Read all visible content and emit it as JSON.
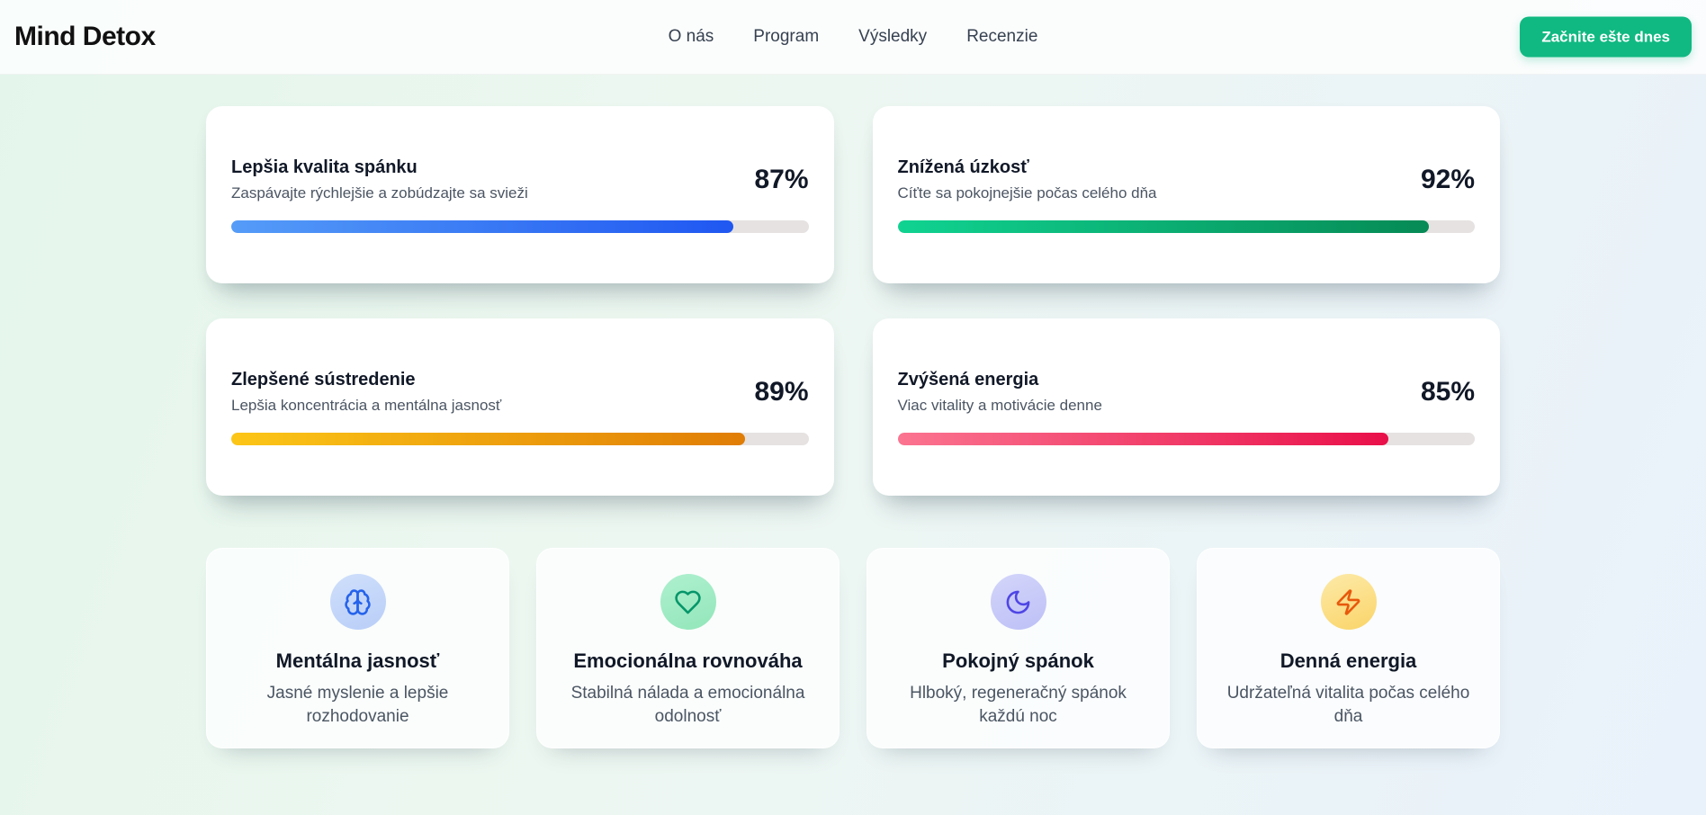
{
  "header": {
    "brand": "Mind Detox",
    "nav_items": [
      {
        "label": "O nás"
      },
      {
        "label": "Program"
      },
      {
        "label": "Výsledky"
      },
      {
        "label": "Recenzie"
      }
    ],
    "cta_label": "Začnite ešte dnes",
    "cta_color": "#10b981"
  },
  "stats": [
    {
      "title": "Lepšia kvalita spánku",
      "subtitle": "Zaspávajte rýchlejšie a zobúdzajte sa svieži",
      "percent": "87%",
      "value": 87,
      "bar_from": "#559cf8",
      "bar_to": "#1f57f1"
    },
    {
      "title": "Znížená úzkosť",
      "subtitle": "Cíťte sa pokojnejšie počas celého dňa",
      "percent": "92%",
      "value": 92,
      "bar_from": "#10d391",
      "bar_to": "#068a55"
    },
    {
      "title": "Zlepšené sústredenie",
      "subtitle": "Lepšia koncentrácia a mentálna jasnosť",
      "percent": "89%",
      "value": 89,
      "bar_from": "#fcc617",
      "bar_to": "#e07d05"
    },
    {
      "title": "Zvýšená energia",
      "subtitle": "Viac vitality a motivácie denne",
      "percent": "85%",
      "value": 85,
      "bar_from": "#fb7490",
      "bar_to": "#e91049"
    }
  ],
  "features": [
    {
      "icon": "brain-icon",
      "title": "Mentálna jasnosť",
      "subtitle": "Jasné myslenie a lepšie rozhodovanie",
      "icon_color": "#2563eb",
      "circle_from": "#cfdffb",
      "circle_to": "#b9cef8"
    },
    {
      "icon": "heart-icon",
      "title": "Emocionálna rovnováha",
      "subtitle": "Stabilná nálada a emocionálna odolnosť",
      "icon_color": "#059669",
      "circle_from": "#aef0cf",
      "circle_to": "#93e6ba"
    },
    {
      "icon": "moon-icon",
      "title": "Pokojný spánok",
      "subtitle": "Hlboký, regeneračný spánok každú noc",
      "icon_color": "#4f46e5",
      "circle_from": "#d3d5fa",
      "circle_to": "#bdc0f6"
    },
    {
      "icon": "zap-icon",
      "title": "Denná energia",
      "subtitle": "Udržateľná vitalita počas celého dňa",
      "icon_color": "#e8590c",
      "circle_from": "#fdeaa9",
      "circle_to": "#fad468"
    }
  ],
  "progress_track_color": "#e5e2e1"
}
